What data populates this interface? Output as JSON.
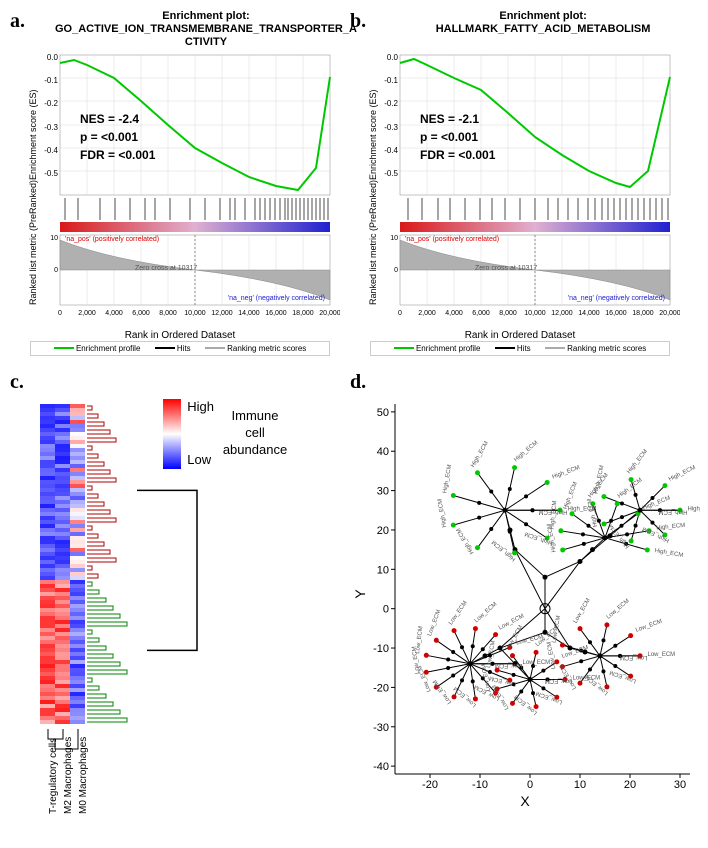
{
  "panel_a": {
    "label": "a.",
    "title_line1": "Enrichment plot:",
    "title_line2": "GO_ACTIVE_ION_TRANSMEMBRANE_TRANSPORTER_A",
    "title_line3": "CTIVITY",
    "y_axis_label_top": "Enrichment score (ES)",
    "y_axis_label_bottom": "Ranked list metric (PreRanked)",
    "x_axis_label": "Rank in Ordered Dataset",
    "stats": {
      "nes": "NES = -2.4",
      "p": "p = <0.001",
      "fdr": "FDR = <0.001"
    },
    "y_ticks_top": [
      "0.0",
      "-0.1",
      "-0.2",
      "-0.3",
      "-0.4",
      "-0.5"
    ],
    "y_ticks_bottom": [
      "10",
      "0"
    ],
    "x_ticks": [
      "0",
      "2,000",
      "4,000",
      "6,000",
      "8,000",
      "10,000",
      "12,000",
      "14,000",
      "16,000",
      "18,000",
      "20,000"
    ],
    "zero_cross": "Zero cross at 10317",
    "pos_label": "'na_pos' (positively correlated)",
    "neg_label": "'na_neg' (negatively correlated)",
    "legend": {
      "profile": "Enrichment profile",
      "hits": "Hits",
      "ranking": "Ranking metric scores"
    },
    "colors": {
      "curve": "#00c800",
      "hit_bars": "#000000",
      "gradient_start": "#d91919",
      "gradient_mid": "#e0b0d0",
      "gradient_end": "#2020d0",
      "metric_fill": "#b0b0b0",
      "grid": "#d0d0d0"
    },
    "curve_points": [
      [
        0,
        0.02
      ],
      [
        0.05,
        0.03
      ],
      [
        0.1,
        0.01
      ],
      [
        0.2,
        -0.05
      ],
      [
        0.3,
        -0.15
      ],
      [
        0.4,
        -0.25
      ],
      [
        0.5,
        -0.35
      ],
      [
        0.6,
        -0.42
      ],
      [
        0.7,
        -0.48
      ],
      [
        0.8,
        -0.53
      ],
      [
        0.88,
        -0.55
      ],
      [
        0.95,
        -0.45
      ],
      [
        1,
        -0.05
      ]
    ]
  },
  "panel_b": {
    "label": "b.",
    "title_line1": "Enrichment plot:",
    "title_line2": "HALLMARK_FATTY_ACID_METABOLISM",
    "y_axis_label_top": "Enrichment score (ES)",
    "y_axis_label_bottom": "Ranked list metric (PreRanked)",
    "x_axis_label": "Rank in Ordered Dataset",
    "stats": {
      "nes": "NES = -2.1",
      "p": "p = <0.001",
      "fdr": "FDR = <0.001"
    },
    "y_ticks_top": [
      "0.0",
      "-0.1",
      "-0.2",
      "-0.3",
      "-0.4",
      "-0.5"
    ],
    "y_ticks_bottom": [
      "10",
      "0"
    ],
    "x_ticks": [
      "0",
      "2,000",
      "4,000",
      "6,000",
      "8,000",
      "10,000",
      "12,000",
      "14,000",
      "16,000",
      "18,000",
      "20,000"
    ],
    "zero_cross": "Zero cross at 10317",
    "pos_label": "'na_pos' (positively correlated)",
    "neg_label": "'na_neg' (negatively correlated)",
    "legend": {
      "profile": "Enrichment profile",
      "hits": "Hits",
      "ranking": "Ranking metric scores"
    },
    "colors": {
      "curve": "#00c800",
      "hit_bars": "#000000",
      "gradient_start": "#d91919",
      "gradient_mid": "#e0b0d0",
      "gradient_end": "#2020d0",
      "metric_fill": "#b0b0b0",
      "grid": "#d0d0d0"
    },
    "curve_points": [
      [
        0,
        0.02
      ],
      [
        0.05,
        0.04
      ],
      [
        0.1,
        0.01
      ],
      [
        0.2,
        -0.05
      ],
      [
        0.3,
        -0.1
      ],
      [
        0.4,
        -0.2
      ],
      [
        0.5,
        -0.3
      ],
      [
        0.6,
        -0.38
      ],
      [
        0.7,
        -0.45
      ],
      [
        0.8,
        -0.5
      ],
      [
        0.85,
        -0.52
      ],
      [
        0.92,
        -0.45
      ],
      [
        1,
        -0.05
      ]
    ]
  },
  "panel_c": {
    "label": "c.",
    "column_labels": [
      "T-regulatory cells",
      "M2 Macrophages",
      "M0 Macrophages"
    ],
    "legend_label": "Immune cell abundance",
    "legend_high": "High",
    "legend_low": "Low",
    "colors": {
      "high": "#ff0000",
      "low": "#0000ff",
      "mid": "#ffffff",
      "dendro_top": "#b00000",
      "dendro_bottom": "#008000"
    },
    "n_rows": 80,
    "n_cols": 3
  },
  "panel_d": {
    "label": "d.",
    "x_label": "X",
    "y_label": "Y",
    "x_ticks": [
      "-20",
      "-10",
      "0",
      "10",
      "20",
      "30"
    ],
    "y_ticks": [
      "-40",
      "-30",
      "-20",
      "-10",
      "0",
      "10",
      "20",
      "30",
      "40",
      "50"
    ],
    "xlim": [
      -27,
      32
    ],
    "ylim": [
      -42,
      52
    ],
    "node_label_high": "High_ECM",
    "node_label_low": "Low_ECM",
    "colors": {
      "internal_node": "#000000",
      "high_leaf": "#00c800",
      "low_leaf": "#d00000",
      "edge": "#000000",
      "axis": "#000000"
    }
  }
}
